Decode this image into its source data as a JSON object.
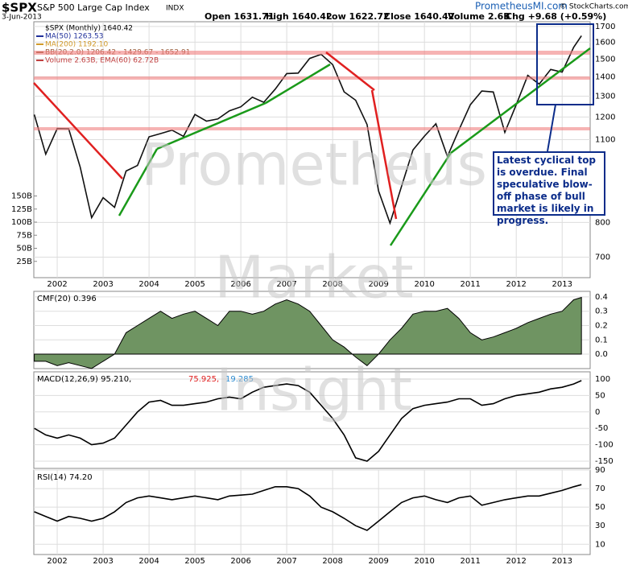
{
  "chart_data": [
    {
      "type": "line",
      "symbol": "$SPX",
      "title": "S&P 500 Large Cap Index",
      "exchange": "INDX",
      "date": "3-Jun-2013",
      "quote": {
        "open": "Open 1631.71",
        "high": "High 1640.42",
        "low": "Low 1622.72",
        "close": "Close 1640.42",
        "volume": "Volume 2.6B",
        "change": "Chg +9.68 (+0.59%)"
      },
      "site": "PrometheusMI.com",
      "credit": "© StockCharts.com",
      "annotation": "Latest cyclical top is overdue. Final speculative blow-off phase of bull market is likely in progress.",
      "watermark": [
        "Prometheus",
        "Market",
        "Insight"
      ],
      "legend": [
        {
          "label": "MA(50) 1263.53",
          "color": "#1f2f9a"
        },
        {
          "label": "MA(200) 1192.10",
          "color": "#d19a2a"
        },
        {
          "label": "BB(20,2.0) 1206.42 - 1429.67 - 1652.91",
          "color": "#9a5a3a"
        },
        {
          "label": "Volume 2.63B, EMA(60) 62.72B",
          "color": "#c04040"
        }
      ],
      "log_scale": true,
      "x": [
        2001.5,
        2001.75,
        2002,
        2002.25,
        2002.5,
        2002.75,
        2003,
        2003.25,
        2003.5,
        2003.75,
        2004,
        2004.25,
        2004.5,
        2004.75,
        2005,
        2005.25,
        2005.5,
        2005.75,
        2006,
        2006.25,
        2006.5,
        2006.75,
        2007,
        2007.25,
        2007.5,
        2007.75,
        2008,
        2008.25,
        2008.5,
        2008.75,
        2009,
        2009.25,
        2009.5,
        2009.75,
        2010,
        2010.25,
        2010.5,
        2010.75,
        2011,
        2011.25,
        2011.5,
        2011.75,
        2012,
        2012.25,
        2012.5,
        2012.75,
        2013,
        2013.25,
        2013.42
      ],
      "series": [
        {
          "name": "$SPX (Monthly) 1640.42",
          "color": "#111111",
          "values": [
            1211,
            1040,
            1148,
            1147,
            990,
            815,
            880,
            848,
            975,
            996,
            1112,
            1126,
            1141,
            1114,
            1212,
            1181,
            1191,
            1229,
            1248,
            1295,
            1270,
            1336,
            1418,
            1421,
            1503,
            1527,
            1468,
            1322,
            1280,
            1166,
            903,
            798,
            919,
            1057,
            1115,
            1169,
            1031,
            1141,
            1258,
            1326,
            1321,
            1131,
            1258,
            1408,
            1362,
            1441,
            1426,
            1569,
            1640.42
          ]
        }
      ],
      "xlim": [
        2001.49,
        2013.61
      ],
      "xticks": [
        2002,
        2003,
        2004,
        2005,
        2006,
        2007,
        2008,
        2009,
        2010,
        2011,
        2012,
        2013
      ],
      "ylim": [
        647,
        1731
      ],
      "yticks": [
        700,
        800,
        1100,
        1200,
        1300,
        1400,
        1500,
        1600,
        1700
      ],
      "y2lim": [
        0,
        160
      ],
      "y2ticks": [
        {
          "value": 25,
          "label": "25B"
        },
        {
          "value": 50,
          "label": "50B"
        },
        {
          "value": 75,
          "label": "75B"
        },
        {
          "value": 100,
          "label": "100B"
        },
        {
          "value": 125,
          "label": "125B"
        },
        {
          "value": 150,
          "label": "150B"
        }
      ]
    },
    {
      "type": "area",
      "title": "CMF(20) 0.396",
      "color": "#6f9462",
      "x": [
        2001.5,
        2001.75,
        2002,
        2002.25,
        2002.5,
        2002.75,
        2003,
        2003.25,
        2003.5,
        2003.75,
        2004,
        2004.25,
        2004.5,
        2004.75,
        2005,
        2005.25,
        2005.5,
        2005.75,
        2006,
        2006.25,
        2006.5,
        2006.75,
        2007,
        2007.25,
        2007.5,
        2007.75,
        2008,
        2008.25,
        2008.5,
        2008.75,
        2009,
        2009.25,
        2009.5,
        2009.75,
        2010,
        2010.25,
        2010.5,
        2010.75,
        2011,
        2011.25,
        2011.5,
        2011.75,
        2012,
        2012.25,
        2012.5,
        2012.75,
        2013,
        2013.25,
        2013.42
      ],
      "values": [
        -0.05,
        -0.05,
        -0.08,
        -0.06,
        -0.08,
        -0.1,
        -0.05,
        0.0,
        0.15,
        0.2,
        0.25,
        0.3,
        0.25,
        0.28,
        0.3,
        0.25,
        0.2,
        0.3,
        0.3,
        0.28,
        0.3,
        0.35,
        0.38,
        0.35,
        0.3,
        0.2,
        0.1,
        0.05,
        -0.02,
        -0.08,
        0.0,
        0.1,
        0.18,
        0.28,
        0.3,
        0.3,
        0.32,
        0.25,
        0.15,
        0.1,
        0.12,
        0.15,
        0.18,
        0.22,
        0.25,
        0.28,
        0.3,
        0.38,
        0.396
      ],
      "xlim": [
        2001.49,
        2013.61
      ],
      "ylim": [
        -0.101,
        0.439
      ],
      "yticks": [
        {
          "value": 0,
          "label": "0.0"
        },
        0.1,
        0.2,
        0.3,
        0.4
      ]
    },
    {
      "type": "line",
      "title": "MACD(12,26,9) 95.210,",
      "signal_label": "75.925,",
      "hist_label": "19.285",
      "x": [
        2001.5,
        2001.75,
        2002,
        2002.25,
        2002.5,
        2002.75,
        2003,
        2003.25,
        2003.5,
        2003.75,
        2004,
        2004.25,
        2004.5,
        2004.75,
        2005,
        2005.25,
        2005.5,
        2005.75,
        2006,
        2006.25,
        2006.5,
        2006.75,
        2007,
        2007.25,
        2007.5,
        2007.75,
        2008,
        2008.25,
        2008.5,
        2008.75,
        2009,
        2009.25,
        2009.5,
        2009.75,
        2010,
        2010.25,
        2010.5,
        2010.75,
        2011,
        2011.25,
        2011.5,
        2011.75,
        2012,
        2012.25,
        2012.5,
        2012.75,
        2013,
        2013.25,
        2013.42
      ],
      "series": [
        {
          "name": "MACD",
          "color": "#000000",
          "values": [
            -50,
            -70,
            -80,
            -70,
            -80,
            -100,
            -95,
            -80,
            -40,
            0,
            30,
            35,
            20,
            20,
            25,
            30,
            40,
            45,
            40,
            60,
            75,
            80,
            85,
            80,
            60,
            20,
            -20,
            -70,
            -140,
            -150,
            -120,
            -70,
            -20,
            10,
            20,
            25,
            30,
            40,
            40,
            20,
            25,
            40,
            50,
            55,
            60,
            70,
            75,
            85,
            95.21
          ]
        }
      ],
      "signal_color": "#e02020",
      "hist_color": "#2a8ad0",
      "xlim": [
        2001.49,
        2013.61
      ],
      "ylim": [
        -172,
        122
      ],
      "yticks": [
        -150,
        -100,
        -50,
        0,
        50,
        100
      ]
    },
    {
      "type": "line",
      "title": "RSI(14) 74.20",
      "x": [
        2001.5,
        2001.75,
        2002,
        2002.25,
        2002.5,
        2002.75,
        2003,
        2003.25,
        2003.5,
        2003.75,
        2004,
        2004.25,
        2004.5,
        2004.75,
        2005,
        2005.25,
        2005.5,
        2005.75,
        2006,
        2006.25,
        2006.5,
        2006.75,
        2007,
        2007.25,
        2007.5,
        2007.75,
        2008,
        2008.25,
        2008.5,
        2008.75,
        2009,
        2009.25,
        2009.5,
        2009.75,
        2010,
        2010.25,
        2010.5,
        2010.75,
        2011,
        2011.25,
        2011.5,
        2011.75,
        2012,
        2012.25,
        2012.5,
        2012.75,
        2013,
        2013.25,
        2013.42
      ],
      "series": [
        {
          "name": "RSI",
          "color": "#000000",
          "values": [
            45,
            40,
            35,
            40,
            38,
            35,
            38,
            45,
            55,
            60,
            62,
            60,
            58,
            60,
            62,
            60,
            58,
            62,
            63,
            64,
            68,
            72,
            72,
            70,
            62,
            50,
            45,
            38,
            30,
            25,
            35,
            45,
            55,
            60,
            62,
            58,
            55,
            60,
            62,
            52,
            55,
            58,
            60,
            62,
            62,
            65,
            68,
            72,
            74.2
          ]
        }
      ],
      "xlim": [
        2001.49,
        2013.61
      ],
      "xticks": [
        2002,
        2003,
        2004,
        2005,
        2006,
        2007,
        2008,
        2009,
        2010,
        2011,
        2012,
        2013
      ],
      "ylim": [
        -1,
        90
      ],
      "yticks": [
        10,
        30,
        50,
        70,
        90
      ]
    }
  ]
}
